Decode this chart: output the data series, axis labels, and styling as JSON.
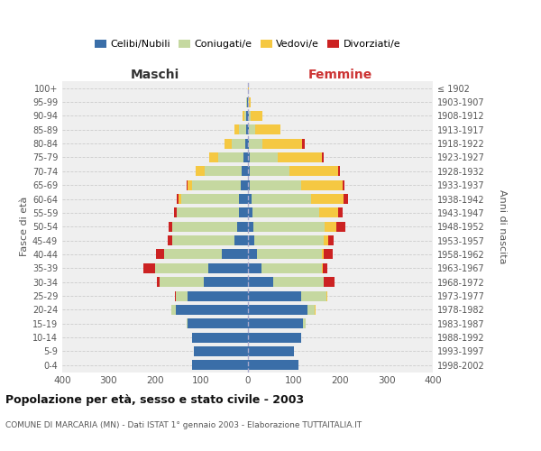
{
  "age_groups": [
    "0-4",
    "5-9",
    "10-14",
    "15-19",
    "20-24",
    "25-29",
    "30-34",
    "35-39",
    "40-44",
    "45-49",
    "50-54",
    "55-59",
    "60-64",
    "65-69",
    "70-74",
    "75-79",
    "80-84",
    "85-89",
    "90-94",
    "95-99",
    "100+"
  ],
  "birth_years": [
    "1998-2002",
    "1993-1997",
    "1988-1992",
    "1983-1987",
    "1978-1982",
    "1973-1977",
    "1968-1972",
    "1963-1967",
    "1958-1962",
    "1953-1957",
    "1948-1952",
    "1943-1947",
    "1938-1942",
    "1933-1937",
    "1928-1932",
    "1923-1927",
    "1918-1922",
    "1913-1917",
    "1908-1912",
    "1903-1907",
    "≤ 1902"
  ],
  "maschi": {
    "celibi": [
      120,
      115,
      120,
      130,
      155,
      130,
      95,
      85,
      55,
      28,
      22,
      18,
      18,
      15,
      12,
      8,
      5,
      3,
      2,
      1,
      0
    ],
    "coniugati": [
      0,
      0,
      0,
      2,
      10,
      25,
      95,
      115,
      125,
      135,
      140,
      135,
      125,
      105,
      80,
      55,
      30,
      15,
      5,
      1,
      0
    ],
    "vedovi": [
      0,
      0,
      0,
      0,
      0,
      0,
      0,
      0,
      0,
      0,
      0,
      0,
      5,
      10,
      20,
      20,
      15,
      10,
      3,
      1,
      0
    ],
    "divorziati": [
      0,
      0,
      0,
      0,
      0,
      2,
      5,
      25,
      18,
      10,
      8,
      5,
      5,
      2,
      0,
      0,
      0,
      0,
      0,
      0,
      0
    ]
  },
  "femmine": {
    "celibi": [
      110,
      100,
      115,
      120,
      130,
      115,
      55,
      30,
      20,
      15,
      12,
      10,
      8,
      5,
      5,
      5,
      3,
      2,
      2,
      1,
      0
    ],
    "coniugati": [
      0,
      0,
      0,
      5,
      15,
      55,
      110,
      130,
      140,
      150,
      155,
      145,
      130,
      110,
      85,
      60,
      30,
      15,
      5,
      1,
      0
    ],
    "vedovi": [
      0,
      0,
      0,
      0,
      2,
      2,
      0,
      2,
      5,
      10,
      25,
      40,
      70,
      90,
      105,
      95,
      85,
      55,
      25,
      5,
      2
    ],
    "divorziati": [
      0,
      0,
      0,
      0,
      0,
      0,
      22,
      10,
      18,
      10,
      20,
      10,
      10,
      5,
      5,
      5,
      5,
      0,
      0,
      0,
      0
    ]
  },
  "colors": {
    "celibi": "#3a6ea8",
    "coniugati": "#c5d8a0",
    "vedovi": "#f5c842",
    "divorziati": "#cc2222"
  },
  "legend_labels": [
    "Celibi/Nubili",
    "Coniugati/e",
    "Vedovi/e",
    "Divorziati/e"
  ],
  "xlim": 400,
  "title": "Popolazione per età, sesso e stato civile - 2003",
  "subtitle": "COMUNE DI MARCARIA (MN) - Dati ISTAT 1° gennaio 2003 - Elaborazione TUTTAITALIA.IT",
  "ylabel": "Fasce di età",
  "ylabel_right": "Anni di nascita",
  "xlabel_left": "Maschi",
  "xlabel_right": "Femmine",
  "bg_color": "#ffffff",
  "plot_bg": "#efefef",
  "grid_color": "#cccccc"
}
